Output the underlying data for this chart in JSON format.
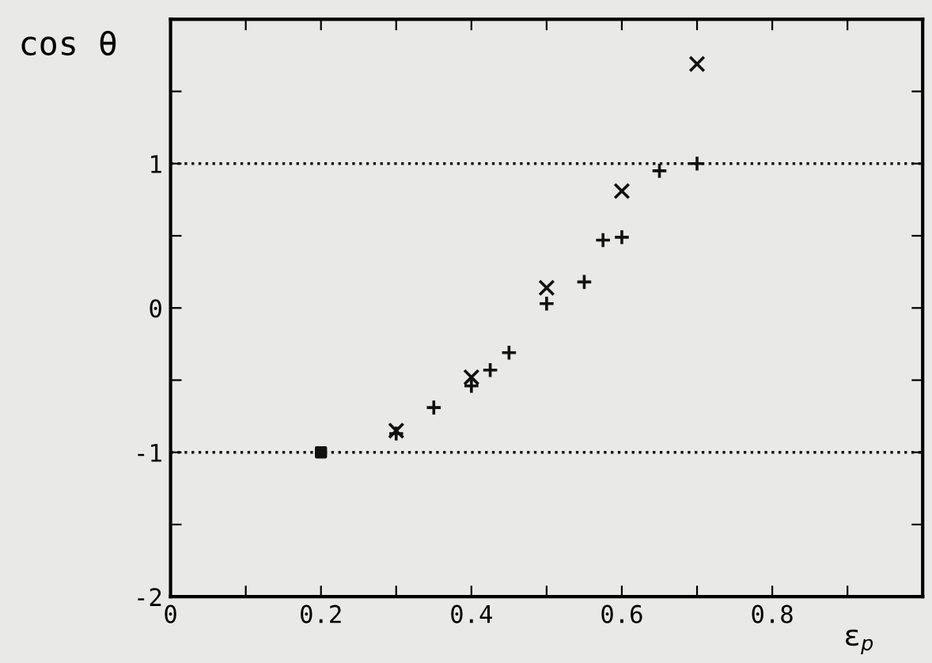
{
  "chart_data": {
    "type": "scatter",
    "ylabel": "cos θ",
    "xlabel": "ε$_{p}$",
    "series": [
      {
        "color": "#111111",
        "marker": "plus",
        "x": [
          0.3,
          0.35,
          0.4,
          0.425,
          0.45,
          0.5,
          0.55,
          0.575,
          0.6,
          0.65,
          0.7
        ],
        "values": [
          -0.87,
          -0.69,
          -0.54,
          -0.43,
          -0.31,
          0.03,
          0.18,
          0.47,
          0.49,
          0.95,
          1.0
        ]
      },
      {
        "color": "#111111",
        "marker": "cross",
        "x": [
          0.3,
          0.4,
          0.5,
          0.6,
          0.7
        ],
        "values": [
          -0.85,
          -0.48,
          0.14,
          0.81,
          1.69
        ]
      },
      {
        "color": "#111111",
        "marker": "square",
        "x": [
          0.2
        ],
        "values": [
          -1.0
        ]
      }
    ],
    "xlim": [
      0,
      1
    ],
    "ylim": [
      -2,
      2
    ],
    "xticks": [
      0,
      {
        "value": 0.1,
        "label": null
      },
      0.2,
      {
        "value": 0.3,
        "label": null
      },
      0.4,
      {
        "value": 0.5,
        "label": null
      },
      0.6,
      {
        "value": 0.7,
        "label": null
      },
      0.8,
      {
        "value": 0.9,
        "label": null
      },
      {
        "value": 1,
        "label": null
      }
    ],
    "yticks": [
      -2,
      {
        "value": -1.5,
        "label": null
      },
      -1,
      {
        "value": -0.5,
        "label": null
      },
      0,
      {
        "value": 0.5,
        "label": null
      },
      1,
      {
        "value": 1.5,
        "label": null
      },
      {
        "value": 2,
        "label": null
      }
    ],
    "ref_lines": [
      {
        "axis": "y",
        "value": 1,
        "line_style": "dotted",
        "color": "#111111"
      },
      {
        "axis": "y",
        "value": -1,
        "line_style": "dotted",
        "color": "#111111"
      }
    ],
    "grid": false,
    "legend": false
  }
}
